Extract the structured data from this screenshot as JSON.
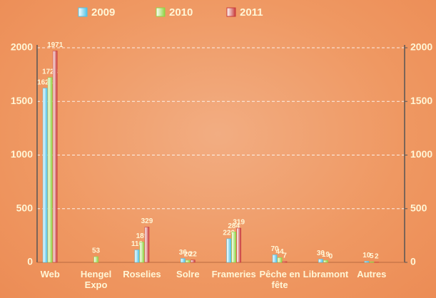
{
  "chart_data": {
    "type": "bar",
    "categories": [
      "Web",
      "Hengel Expo",
      "Roselies",
      "Solre",
      "Frameries",
      "Pêche en fête",
      "Libramont",
      "Autres"
    ],
    "series": [
      {
        "name": "2009",
        "color": "#4fc3e8",
        "values": [
          1623,
          null,
          116,
          36,
          220,
          70,
          30,
          10
        ]
      },
      {
        "name": "2010",
        "color": "#8fd444",
        "values": [
          1723,
          53,
          189,
          20,
          284,
          44,
          19,
          5
        ]
      },
      {
        "name": "2011",
        "color": "#c83a3a",
        "values": [
          1971,
          null,
          329,
          22,
          319,
          7,
          0,
          2
        ]
      }
    ],
    "ylim": [
      0,
      2000
    ],
    "yticks": [
      0,
      500,
      1000,
      1500,
      2000
    ],
    "y2lim": [
      0,
      2000
    ],
    "y2ticks": [
      0,
      500,
      1000,
      1500,
      2000
    ],
    "grid": true,
    "legend": "top"
  }
}
